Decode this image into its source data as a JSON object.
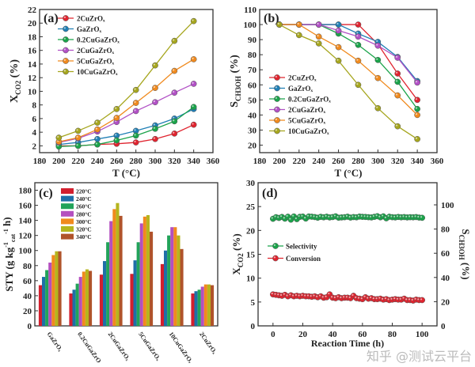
{
  "chart_data": [
    {
      "panel": "(a)",
      "type": "line",
      "x": [
        200,
        220,
        240,
        260,
        280,
        300,
        320,
        340
      ],
      "xlabel": "T (°C)",
      "ylabel": {
        "main": "X",
        "sub": "CO2",
        "suffix": " (%)"
      },
      "xlim": [
        180,
        360
      ],
      "ylim": [
        1,
        22
      ],
      "xticks": [
        180,
        200,
        220,
        240,
        260,
        280,
        300,
        320,
        340,
        360
      ],
      "yticks": [
        2,
        4,
        6,
        8,
        10,
        12,
        14,
        16,
        18,
        20,
        22
      ],
      "legend": "top-left",
      "series": [
        {
          "name": "2CuZrOₓ",
          "color": "#e0242f",
          "values": [
            2.0,
            2.0,
            2.2,
            2.3,
            2.5,
            3.0,
            3.8,
            5.1
          ]
        },
        {
          "name": "GaZrOₓ",
          "color": "#1f7fb5",
          "values": [
            2.2,
            2.5,
            3.0,
            3.5,
            4.2,
            5.0,
            6.0,
            7.4
          ]
        },
        {
          "name": "0.2CuGaZrOₓ",
          "color": "#1aa34a",
          "values": [
            1.9,
            2.0,
            2.2,
            2.8,
            3.5,
            4.5,
            5.6,
            7.7
          ]
        },
        {
          "name": "2CuGaZrOₓ",
          "color": "#b150c5",
          "values": [
            2.5,
            3.1,
            4.1,
            5.5,
            7.1,
            8.4,
            9.8,
            11.1
          ]
        },
        {
          "name": "5CuGaZrOₓ",
          "color": "#f08a1e",
          "values": [
            2.6,
            3.2,
            4.4,
            6.1,
            8.3,
            10.5,
            13.0,
            14.7
          ]
        },
        {
          "name": "10CuGaZrOₓ",
          "color": "#a6a61e",
          "values": [
            3.2,
            4.2,
            5.4,
            7.4,
            10.2,
            13.8,
            17.4,
            20.3
          ]
        }
      ]
    },
    {
      "panel": "(b)",
      "type": "line",
      "x": [
        200,
        220,
        240,
        260,
        280,
        300,
        320,
        340
      ],
      "xlabel": "T (°C)",
      "ylabel": {
        "main": "S",
        "sub": "CH3OH",
        "suffix": " (%)"
      },
      "xlim": [
        180,
        360
      ],
      "ylim": [
        15,
        110
      ],
      "xticks": [
        180,
        200,
        220,
        240,
        260,
        280,
        300,
        320,
        340,
        360
      ],
      "yticks": [
        20,
        30,
        40,
        50,
        60,
        70,
        80,
        90,
        100,
        110
      ],
      "legend": "center-left",
      "series": [
        {
          "name": "2CuZrOₓ",
          "color": "#e0242f",
          "values": [
            100,
            100,
            100,
            100,
            100,
            87,
            67.5,
            50
          ]
        },
        {
          "name": "GaZrOₓ",
          "color": "#1f7fb5",
          "values": [
            100,
            100,
            100,
            100,
            94,
            88.5,
            78.5,
            62.5
          ]
        },
        {
          "name": "0.2CuGaZrOₓ",
          "color": "#1aa34a",
          "values": [
            100,
            100,
            100,
            94,
            86.5,
            76.5,
            62,
            44
          ]
        },
        {
          "name": "2CuGaZrOₓ",
          "color": "#b150c5",
          "values": [
            100,
            100,
            100,
            96,
            92,
            86,
            78,
            61.5
          ]
        },
        {
          "name": "5CuGaZrOₓ",
          "color": "#f08a1e",
          "values": [
            100,
            100,
            92,
            85,
            76,
            64.5,
            53,
            40
          ]
        },
        {
          "name": "10CuGaZrOₓ",
          "color": "#a6a61e",
          "values": [
            100,
            93,
            87.5,
            76,
            60,
            44.5,
            32.5,
            24
          ]
        }
      ]
    },
    {
      "panel": "(c)",
      "type": "bar",
      "categories": [
        "GaZrOₓ",
        "0.2CuGaZrOₓ",
        "2CuGaZrOₓ",
        "5CuGaZrOₓ",
        "10CuGaZrOₓ",
        "2CuZrOₓ"
      ],
      "ylabel": {
        "main": "STY (g kg",
        "sub": "cat",
        "suffix": " h)",
        "sup1": "-1",
        "sup2": "-1"
      },
      "ylim": [
        0,
        190
      ],
      "yticks": [
        0,
        20,
        40,
        60,
        80,
        100,
        120,
        140,
        160,
        180
      ],
      "legend": "top-left",
      "series": [
        {
          "name": "220°C",
          "color": "#d21f2e",
          "values": [
            54,
            43,
            68,
            69,
            82,
            43
          ]
        },
        {
          "name": "240°C",
          "color": "#1f6fa8",
          "values": [
            65,
            48,
            86,
            87,
            100,
            46
          ]
        },
        {
          "name": "260°C",
          "color": "#22a35a",
          "values": [
            74,
            56,
            111,
            111,
            120,
            48
          ]
        },
        {
          "name": "280°C",
          "color": "#b44fbf",
          "values": [
            84,
            65,
            139,
            136,
            131,
            52
          ]
        },
        {
          "name": "300°C",
          "color": "#f08a1e",
          "values": [
            94,
            72,
            155,
            145,
            131,
            55
          ]
        },
        {
          "name": "320°C",
          "color": "#b5b51e",
          "values": [
            99,
            75,
            163,
            147,
            120,
            55
          ]
        },
        {
          "name": "340°C",
          "color": "#b0532a",
          "values": [
            99,
            73,
            146,
            125,
            102,
            54
          ]
        }
      ]
    },
    {
      "panel": "(d)",
      "type": "scatter",
      "xlabel": "Reaction Time (h)",
      "ylabel_left": {
        "main": "X",
        "sub": "CO2",
        "suffix": " (%)"
      },
      "ylabel_right": {
        "main": "S",
        "sub": "CH3OH",
        "suffix": " (%)"
      },
      "xlim": [
        -10,
        110
      ],
      "ylim_left": [
        0,
        30
      ],
      "ylim_right": [
        0,
        118.3
      ],
      "xticks": [
        0,
        20,
        40,
        60,
        80,
        100
      ],
      "yticks_left": [
        0,
        5,
        10,
        15,
        20,
        25,
        30
      ],
      "yticks_right": [
        0,
        20,
        40,
        60,
        80,
        100
      ],
      "legend": "center-left",
      "x": [
        0,
        2,
        4,
        6,
        8,
        10,
        12,
        14,
        16,
        18,
        20,
        22,
        24,
        26,
        28,
        30,
        32,
        34,
        36,
        38,
        40,
        42,
        44,
        46,
        48,
        50,
        52,
        54,
        56,
        58,
        60,
        62,
        64,
        66,
        68,
        70,
        72,
        74,
        76,
        78,
        80,
        82,
        84,
        86,
        88,
        90,
        92,
        94,
        96,
        98,
        100
      ],
      "series": [
        {
          "name": "Selectivity",
          "axis": "right",
          "color": "#1aa34a",
          "values": [
            88.5,
            89.8,
            89.2,
            90.0,
            88.6,
            90.2,
            87.8,
            90.4,
            88.2,
            90.1,
            90.3,
            88.7,
            90.4,
            90.2,
            89.9,
            89.4,
            90.1,
            89.7,
            90.2,
            89.6,
            89.9,
            90.5,
            89.4,
            89.6,
            89.8,
            90.2,
            89.5,
            89.9,
            89.7,
            90.3,
            90.1,
            90.0,
            89.8,
            89.6,
            90.1,
            90.6,
            89.7,
            90.5,
            88.9,
            90.2,
            89.8,
            89.6,
            90.0,
            89.7,
            89.9,
            89.6,
            89.8,
            89.7,
            89.9,
            89.5,
            89.3
          ]
        },
        {
          "name": "Conversion",
          "axis": "left",
          "color": "#e0242f",
          "values": [
            6.6,
            6.5,
            6.4,
            6.3,
            6.5,
            6.2,
            6.4,
            6.2,
            6.3,
            6.2,
            6.3,
            6.2,
            6.2,
            6.1,
            6.2,
            6.0,
            6.2,
            5.9,
            6.0,
            6.6,
            5.9,
            5.8,
            6.0,
            5.8,
            5.9,
            5.9,
            5.8,
            6.3,
            5.8,
            5.7,
            5.6,
            6.0,
            5.7,
            5.8,
            5.6,
            5.6,
            5.7,
            5.5,
            5.6,
            5.4,
            5.5,
            5.6,
            5.5,
            5.5,
            5.7,
            5.4,
            5.4,
            5.3,
            5.5,
            5.4,
            5.4
          ]
        }
      ]
    }
  ],
  "watermark": "知乎 @测试云平台"
}
